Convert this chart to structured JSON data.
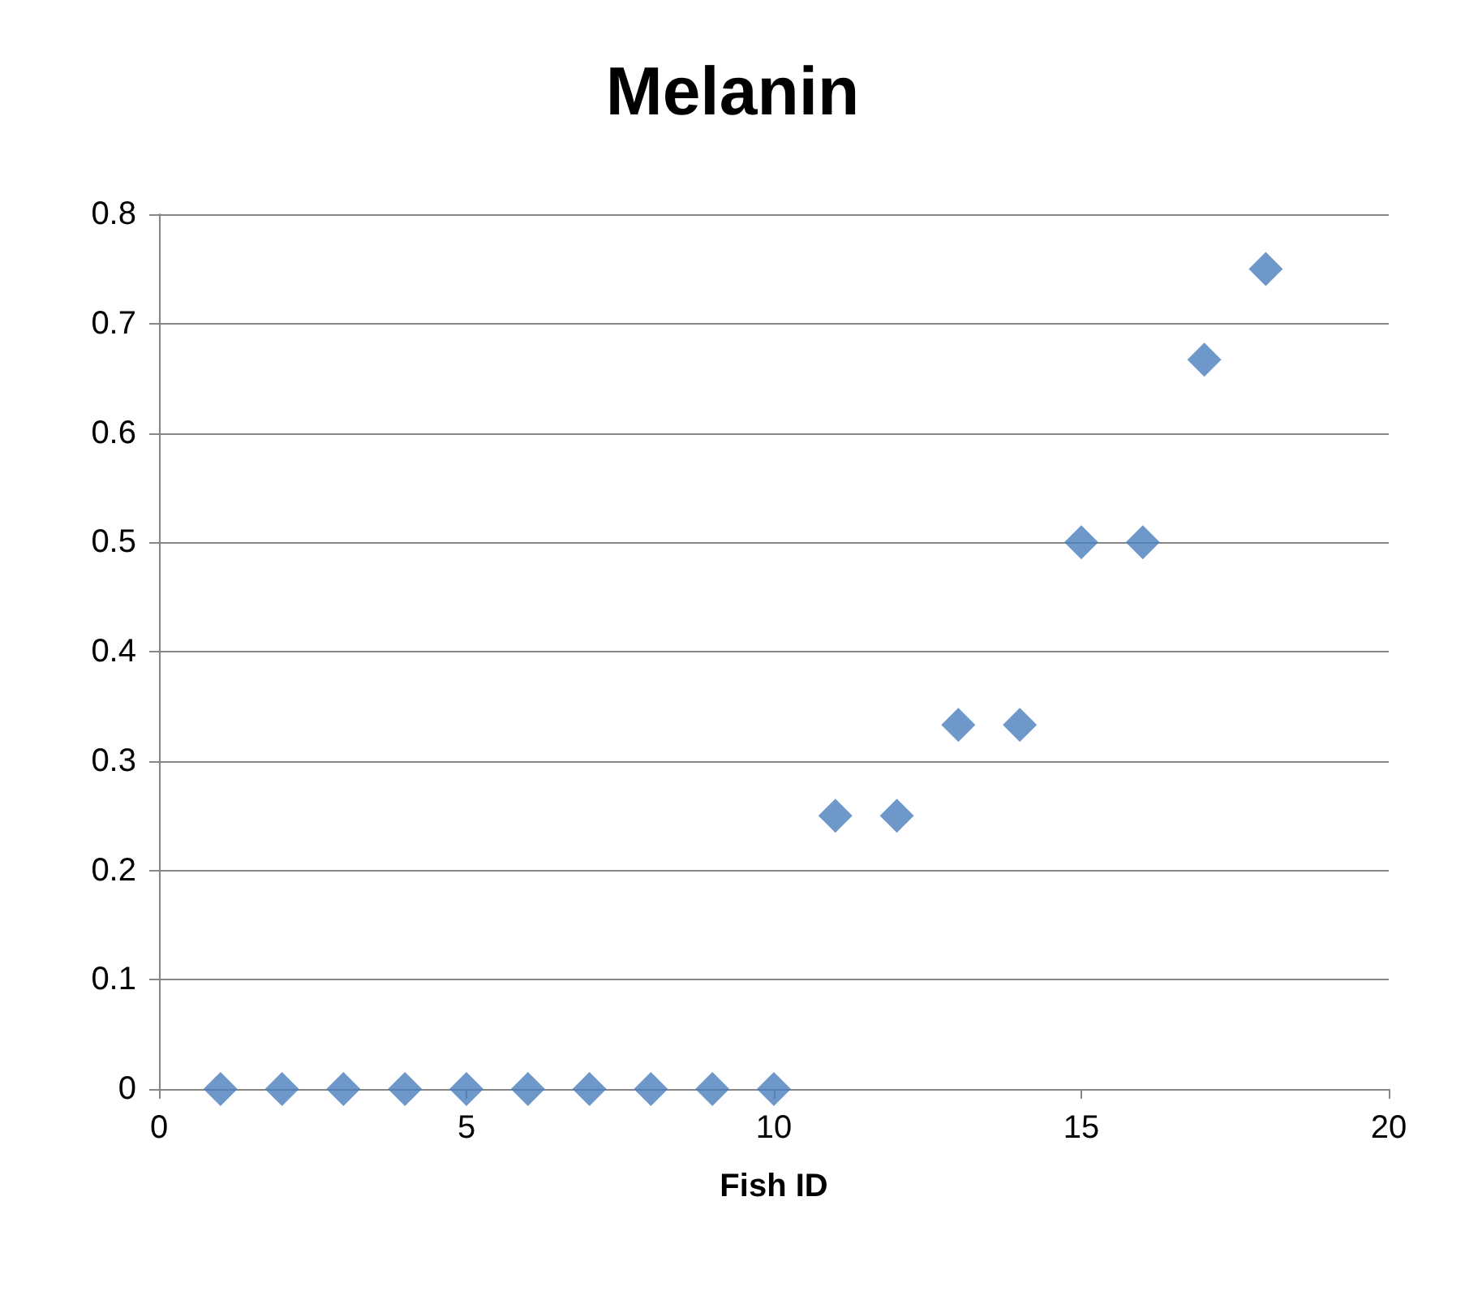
{
  "chart_data": {
    "type": "scatter",
    "title": "Melanin",
    "xlabel": "Fish ID",
    "x": [
      1,
      2,
      3,
      4,
      5,
      6,
      7,
      8,
      9,
      10,
      11,
      12,
      13,
      14,
      15,
      16,
      17,
      18
    ],
    "series": [
      {
        "color": "#4a7ebb",
        "values": [
          0,
          0,
          0,
          0,
          0,
          0,
          0,
          0,
          0,
          0,
          0.25,
          0.25,
          0.333,
          0.333,
          0.5,
          0.5,
          0.667,
          0.75
        ]
      }
    ],
    "xlim": [
      0,
      20
    ],
    "xticks": [
      0,
      5,
      10,
      15,
      20
    ],
    "ylim": [
      0,
      0.8
    ],
    "yticks": [
      0,
      0.1,
      0.2,
      0.3,
      0.4,
      0.5,
      0.6,
      0.7,
      0.8
    ],
    "grid": "y",
    "marker": "diamond"
  }
}
